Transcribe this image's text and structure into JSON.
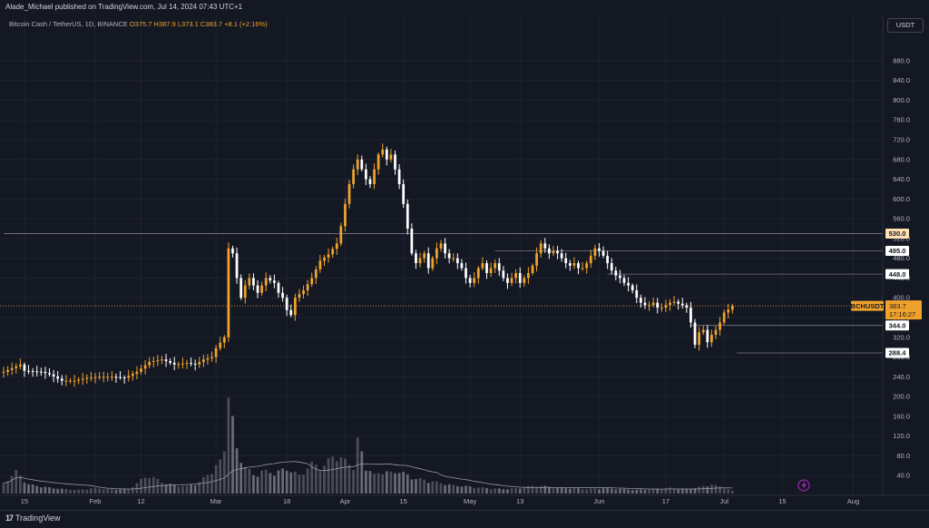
{
  "header": {
    "publisher_text": "Alade_Michael published on TradingView.com, Jul 14, 2024 07:43 UTC+1"
  },
  "legend": {
    "symbol": "Bitcoin Cash / TetherUS, 1D, BINANCE",
    "open": "O375.7",
    "high": "H387.9",
    "low": "L373.1",
    "close": "C383.7",
    "change": "+8.1 (+2.16%)"
  },
  "currency_button": "USDT",
  "footer": {
    "brand": "TradingView"
  },
  "colors": {
    "background": "#141823",
    "up": "#f0a32c",
    "down": "#ffffff",
    "volume": "#787b86",
    "hline": "#787b86",
    "last_price": "#f0a32c"
  },
  "chart_data": {
    "type": "candlestick",
    "symbol": "BCHUSDT",
    "ylim": [
      0,
      900
    ],
    "y_ticks": [
      40,
      80,
      120,
      160,
      200,
      240,
      280,
      320,
      360,
      400,
      440,
      480,
      520,
      560,
      600,
      640,
      680,
      720,
      760,
      800,
      840,
      880
    ],
    "x_labels": [
      {
        "label": "15",
        "day": 0
      },
      {
        "label": "Feb",
        "day": 17
      },
      {
        "label": "12",
        "day": 28
      },
      {
        "label": "Mar",
        "day": 46
      },
      {
        "label": "18",
        "day": 63
      },
      {
        "label": "Apr",
        "day": 77
      },
      {
        "label": "15",
        "day": 91
      },
      {
        "label": "May",
        "day": 107
      },
      {
        "label": "13",
        "day": 119
      },
      {
        "label": "Jun",
        "day": 138
      },
      {
        "label": "17",
        "day": 154
      },
      {
        "label": "Jul",
        "day": 168
      },
      {
        "label": "15",
        "day": 182
      },
      {
        "label": "Aug",
        "day": 199
      }
    ],
    "x_range_days": [
      -5,
      205
    ],
    "horizontal_levels": [
      {
        "value": 530.0,
        "label": "530.0",
        "from_day": -5
      },
      {
        "value": 495.0,
        "label": "495.0",
        "from_day": 113
      },
      {
        "value": 448.0,
        "label": "448.0",
        "from_day": 140
      },
      {
        "value": 344.0,
        "label": "344.0",
        "from_day": 160
      },
      {
        "value": 288.4,
        "label": "288.4",
        "from_day": 171
      }
    ],
    "last_price": {
      "symbol": "BCHUSDT",
      "price": "383.7",
      "countdown": "17:16:27",
      "value": 383.7
    },
    "close_path": [
      [
        -5,
        250
      ],
      [
        -1,
        265
      ],
      [
        0,
        252
      ],
      [
        4,
        250
      ],
      [
        6,
        245
      ],
      [
        9,
        232
      ],
      [
        12,
        232
      ],
      [
        15,
        238
      ],
      [
        18,
        240
      ],
      [
        21,
        240
      ],
      [
        24,
        238
      ],
      [
        27,
        250
      ],
      [
        30,
        270
      ],
      [
        33,
        275
      ],
      [
        36,
        265
      ],
      [
        39,
        268
      ],
      [
        41,
        265
      ],
      [
        43,
        275
      ],
      [
        45,
        280
      ],
      [
        46,
        298
      ],
      [
        48,
        320
      ],
      [
        49,
        500
      ],
      [
        50,
        490
      ],
      [
        51,
        440
      ],
      [
        52,
        400
      ],
      [
        53,
        425
      ],
      [
        54,
        440
      ],
      [
        56,
        410
      ],
      [
        58,
        440
      ],
      [
        60,
        430
      ],
      [
        61,
        410
      ],
      [
        62,
        400
      ],
      [
        63,
        375
      ],
      [
        64,
        365
      ],
      [
        65,
        400
      ],
      [
        67,
        415
      ],
      [
        69,
        440
      ],
      [
        71,
        475
      ],
      [
        73,
        488
      ],
      [
        75,
        510
      ],
      [
        76,
        545
      ],
      [
        77,
        590
      ],
      [
        78,
        630
      ],
      [
        79,
        660
      ],
      [
        80,
        680
      ],
      [
        81,
        660
      ],
      [
        82,
        640
      ],
      [
        83,
        630
      ],
      [
        84,
        660
      ],
      [
        85,
        690
      ],
      [
        86,
        700
      ],
      [
        87,
        680
      ],
      [
        88,
        690
      ],
      [
        89,
        660
      ],
      [
        90,
        630
      ],
      [
        91,
        590
      ],
      [
        92,
        540
      ],
      [
        93,
        490
      ],
      [
        94,
        470
      ],
      [
        95,
        480
      ],
      [
        96,
        490
      ],
      [
        97,
        460
      ],
      [
        98,
        480
      ],
      [
        99,
        500
      ],
      [
        100,
        510
      ],
      [
        101,
        490
      ],
      [
        102,
        480
      ],
      [
        103,
        480
      ],
      [
        104,
        470
      ],
      [
        105,
        460
      ],
      [
        106,
        440
      ],
      [
        107,
        430
      ],
      [
        108,
        440
      ],
      [
        109,
        460
      ],
      [
        110,
        470
      ],
      [
        111,
        450
      ],
      [
        112,
        460
      ],
      [
        113,
        470
      ],
      [
        114,
        455
      ],
      [
        115,
        440
      ],
      [
        116,
        430
      ],
      [
        117,
        440
      ],
      [
        118,
        450
      ],
      [
        119,
        430
      ],
      [
        120,
        440
      ],
      [
        121,
        450
      ],
      [
        122,
        465
      ],
      [
        123,
        490
      ],
      [
        124,
        510
      ],
      [
        125,
        500
      ],
      [
        126,
        490
      ],
      [
        127,
        495
      ],
      [
        128,
        490
      ],
      [
        129,
        480
      ],
      [
        130,
        470
      ],
      [
        131,
        465
      ],
      [
        132,
        470
      ],
      [
        133,
        460
      ],
      [
        134,
        460
      ],
      [
        135,
        470
      ],
      [
        136,
        485
      ],
      [
        137,
        500
      ],
      [
        138,
        495
      ],
      [
        139,
        485
      ],
      [
        140,
        470
      ],
      [
        141,
        455
      ],
      [
        142,
        445
      ],
      [
        143,
        440
      ],
      [
        144,
        430
      ],
      [
        145,
        425
      ],
      [
        146,
        415
      ],
      [
        147,
        400
      ],
      [
        148,
        390
      ],
      [
        149,
        385
      ],
      [
        150,
        385
      ],
      [
        151,
        390
      ],
      [
        152,
        380
      ],
      [
        153,
        380
      ],
      [
        154,
        385
      ],
      [
        155,
        390
      ],
      [
        156,
        392
      ],
      [
        157,
        388
      ],
      [
        158,
        385
      ],
      [
        159,
        380
      ],
      [
        160,
        350
      ],
      [
        161,
        305
      ],
      [
        162,
        330
      ],
      [
        163,
        335
      ],
      [
        164,
        310
      ],
      [
        165,
        325
      ],
      [
        166,
        335
      ],
      [
        167,
        350
      ],
      [
        168,
        370
      ],
      [
        169,
        376
      ],
      [
        170,
        384
      ]
    ],
    "volume_path": [
      [
        -5,
        22
      ],
      [
        -2,
        48
      ],
      [
        1,
        20
      ],
      [
        5,
        14
      ],
      [
        9,
        10
      ],
      [
        13,
        8
      ],
      [
        17,
        12
      ],
      [
        21,
        9
      ],
      [
        25,
        10
      ],
      [
        28,
        30
      ],
      [
        30,
        40
      ],
      [
        33,
        25
      ],
      [
        36,
        18
      ],
      [
        39,
        16
      ],
      [
        42,
        25
      ],
      [
        45,
        50
      ],
      [
        47,
        70
      ],
      [
        48,
        100
      ],
      [
        49,
        230
      ],
      [
        50,
        160
      ],
      [
        51,
        95
      ],
      [
        53,
        60
      ],
      [
        55,
        40
      ],
      [
        57,
        50
      ],
      [
        60,
        45
      ],
      [
        63,
        55
      ],
      [
        66,
        40
      ],
      [
        69,
        65
      ],
      [
        72,
        60
      ],
      [
        74,
        85
      ],
      [
        76,
        75
      ],
      [
        78,
        70
      ],
      [
        79,
        55
      ],
      [
        80,
        115
      ],
      [
        81,
        90
      ],
      [
        82,
        60
      ],
      [
        84,
        40
      ],
      [
        86,
        50
      ],
      [
        88,
        45
      ],
      [
        90,
        50
      ],
      [
        93,
        35
      ],
      [
        96,
        30
      ],
      [
        99,
        25
      ],
      [
        103,
        18
      ],
      [
        107,
        15
      ],
      [
        111,
        12
      ],
      [
        115,
        10
      ],
      [
        119,
        12
      ],
      [
        123,
        18
      ],
      [
        127,
        14
      ],
      [
        131,
        12
      ],
      [
        135,
        10
      ],
      [
        139,
        12
      ],
      [
        143,
        10
      ],
      [
        147,
        8
      ],
      [
        151,
        10
      ],
      [
        155,
        12
      ],
      [
        159,
        10
      ],
      [
        162,
        14
      ],
      [
        165,
        20
      ],
      [
        168,
        12
      ],
      [
        170,
        6
      ]
    ],
    "volume_max": 240
  }
}
